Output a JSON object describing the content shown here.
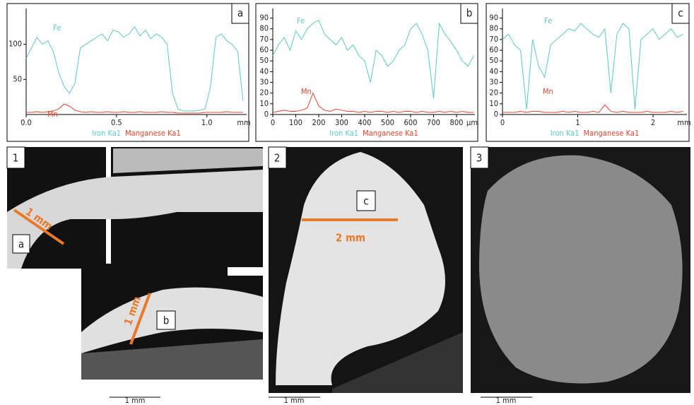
{
  "chart_data": [
    {
      "type": "line",
      "panel": "a",
      "x_unit": "mm",
      "annotations": [
        "Fe",
        "Mn"
      ],
      "x": [
        0,
        0.03,
        0.06,
        0.09,
        0.12,
        0.15,
        0.18,
        0.21,
        0.24,
        0.27,
        0.3,
        0.33,
        0.36,
        0.39,
        0.42,
        0.45,
        0.48,
        0.51,
        0.54,
        0.57,
        0.6,
        0.63,
        0.66,
        0.69,
        0.72,
        0.75,
        0.78,
        0.81,
        0.84,
        0.87,
        0.9,
        0.93,
        0.96,
        0.99,
        1.02,
        1.05,
        1.08,
        1.11,
        1.14,
        1.17,
        1.2
      ],
      "series": [
        {
          "name": "Iron Ka1",
          "color": "#5cc8c8",
          "values": [
            80,
            95,
            110,
            100,
            105,
            90,
            60,
            40,
            30,
            45,
            95,
            100,
            105,
            110,
            115,
            105,
            120,
            118,
            110,
            115,
            125,
            112,
            120,
            108,
            115,
            110,
            100,
            30,
            8,
            5,
            5,
            5,
            6,
            8,
            40,
            110,
            115,
            105,
            100,
            90,
            20
          ]
        },
        {
          "name": "Manganese Ka1",
          "color": "#e8452c",
          "values": [
            3,
            3,
            4,
            3,
            4,
            5,
            8,
            15,
            12,
            6,
            4,
            3,
            4,
            3,
            3,
            4,
            3,
            3,
            4,
            3,
            3,
            4,
            3,
            3,
            3,
            4,
            3,
            3,
            2,
            2,
            2,
            2,
            2,
            3,
            3,
            3,
            3,
            4,
            3,
            3,
            3
          ]
        }
      ],
      "xlim": [
        0,
        1.22
      ],
      "xticks": [
        {
          "value": 0,
          "label": "0.0"
        },
        0.5,
        {
          "value": 1,
          "label": "1.0"
        }
      ],
      "ylim": [
        0,
        145
      ],
      "yticks": [
        50,
        100
      ]
    },
    {
      "type": "line",
      "panel": "b",
      "x_unit": "μm",
      "annotations": [
        "Fe",
        "Mn"
      ],
      "x": [
        0,
        25,
        50,
        75,
        100,
        125,
        150,
        175,
        200,
        225,
        250,
        275,
        300,
        325,
        350,
        375,
        400,
        425,
        450,
        475,
        500,
        525,
        550,
        575,
        600,
        625,
        650,
        675,
        700,
        725,
        750,
        775,
        800,
        825,
        850,
        875
      ],
      "series": [
        {
          "name": "Iron Ka1",
          "color": "#5cc8c8",
          "values": [
            55,
            65,
            72,
            60,
            78,
            70,
            80,
            85,
            88,
            75,
            70,
            65,
            72,
            60,
            65,
            55,
            50,
            30,
            60,
            55,
            45,
            50,
            60,
            65,
            80,
            85,
            75,
            60,
            15,
            85,
            75,
            68,
            60,
            50,
            45,
            55
          ]
        },
        {
          "name": "Manganese Ka1",
          "color": "#e8452c",
          "values": [
            2,
            3,
            4,
            3,
            3,
            4,
            6,
            20,
            8,
            4,
            3,
            5,
            4,
            3,
            3,
            2,
            3,
            2,
            3,
            3,
            2,
            3,
            2,
            3,
            3,
            2,
            3,
            2,
            2,
            3,
            2,
            3,
            2,
            3,
            2,
            2
          ]
        }
      ],
      "xlim": [
        0,
        880
      ],
      "xticks": [
        0,
        100,
        200,
        300,
        400,
        500,
        600,
        700,
        800
      ],
      "ylim": [
        0,
        95
      ],
      "yticks": [
        0,
        10,
        20,
        30,
        40,
        50,
        60,
        70,
        80,
        90
      ]
    },
    {
      "type": "line",
      "panel": "c",
      "x_unit": "mm",
      "annotations": [
        "Fe",
        "Mn"
      ],
      "x": [
        0,
        0.08,
        0.16,
        0.24,
        0.32,
        0.4,
        0.48,
        0.56,
        0.64,
        0.72,
        0.8,
        0.88,
        0.96,
        1.04,
        1.12,
        1.2,
        1.28,
        1.36,
        1.44,
        1.52,
        1.6,
        1.68,
        1.76,
        1.84,
        1.92,
        2,
        2.08,
        2.16,
        2.24,
        2.32,
        2.4
      ],
      "series": [
        {
          "name": "Iron Ka1",
          "color": "#5cc8c8",
          "values": [
            70,
            75,
            65,
            60,
            5,
            70,
            45,
            35,
            65,
            70,
            75,
            80,
            78,
            85,
            80,
            75,
            72,
            80,
            20,
            75,
            85,
            80,
            5,
            70,
            75,
            80,
            70,
            75,
            80,
            72,
            75
          ]
        },
        {
          "name": "Manganese Ka1",
          "color": "#e8452c",
          "values": [
            2,
            2,
            2,
            3,
            2,
            3,
            3,
            2,
            2,
            2,
            3,
            2,
            3,
            2,
            2,
            3,
            2,
            9,
            3,
            2,
            3,
            2,
            2,
            2,
            3,
            2,
            2,
            2,
            3,
            2,
            3
          ]
        }
      ],
      "xlim": [
        0,
        2.45
      ],
      "xticks": [
        0,
        1,
        2
      ],
      "ylim": [
        0,
        95
      ],
      "yticks": [
        0,
        10,
        20,
        30,
        40,
        50,
        60,
        70,
        80,
        90
      ]
    }
  ],
  "images": [
    {
      "label": "1",
      "callouts": [
        "a",
        "b"
      ],
      "scale_labels": [
        "1 mm",
        "1 mm"
      ],
      "scale_bar": "1 mm"
    },
    {
      "label": "2",
      "callouts": [
        "c"
      ],
      "scale_labels": [
        "2 mm"
      ],
      "scale_bar": "1 mm"
    },
    {
      "label": "3",
      "callouts": [],
      "scale_labels": [],
      "scale_bar": "1 mm"
    }
  ]
}
